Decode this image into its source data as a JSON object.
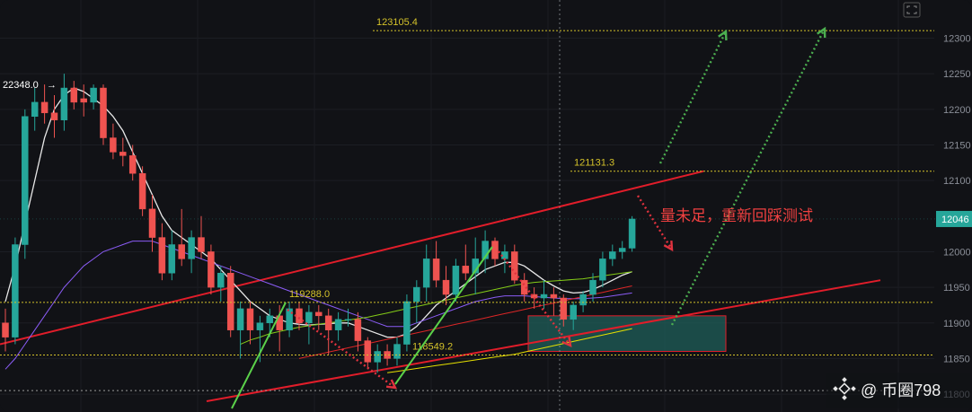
{
  "chart_data": {
    "type": "candlestick",
    "price_range": [
      117900,
      123120
    ],
    "y_ticks": [
      {
        "value": 123000,
        "label": "12300"
      },
      {
        "value": 122500,
        "label": "12250"
      },
      {
        "value": 122000,
        "label": "12200"
      },
      {
        "value": 121500,
        "label": "12150"
      },
      {
        "value": 121000,
        "label": "12100"
      },
      {
        "value": 120000,
        "label": "12000"
      },
      {
        "value": 119500,
        "label": "11950"
      },
      {
        "value": 119000,
        "label": "11900"
      },
      {
        "value": 118500,
        "label": "11850"
      },
      {
        "value": 118000,
        "label": "11800"
      }
    ],
    "current_price": {
      "value": 120460,
      "label": "12046"
    },
    "candles": [
      [
        119000,
        119200,
        118600,
        118800
      ],
      [
        118800,
        120200,
        118700,
        120100
      ],
      [
        120100,
        122000,
        119900,
        121900
      ],
      [
        121900,
        122300,
        121700,
        122100
      ],
      [
        122100,
        122350,
        121800,
        121950
      ],
      [
        121950,
        122200,
        121600,
        121850
      ],
      [
        121850,
        122500,
        121700,
        122300
      ],
      [
        122300,
        122400,
        122000,
        122100
      ],
      [
        122150,
        122350,
        121900,
        122100
      ],
      [
        122100,
        122350,
        122000,
        122300
      ],
      [
        122300,
        122350,
        121500,
        121600
      ],
      [
        121600,
        121800,
        121300,
        121400
      ],
      [
        121400,
        121600,
        121200,
        121350
      ],
      [
        121350,
        121500,
        121000,
        121100
      ],
      [
        121100,
        121200,
        120500,
        120600
      ],
      [
        120600,
        120800,
        120000,
        120200
      ],
      [
        120200,
        120400,
        119600,
        119700
      ],
      [
        119700,
        120300,
        119600,
        120100
      ],
      [
        120100,
        120600,
        119800,
        119900
      ],
      [
        119900,
        120300,
        119700,
        120200
      ],
      [
        120200,
        120500,
        119900,
        120000
      ],
      [
        120000,
        120100,
        119400,
        119500
      ],
      [
        119500,
        119800,
        119300,
        119700
      ],
      [
        119700,
        119800,
        118800,
        118900
      ],
      [
        118900,
        119300,
        118500,
        119200
      ],
      [
        119200,
        119300,
        118700,
        118900
      ],
      [
        118900,
        119100,
        118450,
        119000
      ],
      [
        119000,
        119200,
        118800,
        119100
      ],
      [
        119100,
        119250,
        118600,
        118900
      ],
      [
        118900,
        119300,
        118800,
        119200
      ],
      [
        119200,
        119300,
        118900,
        119000
      ],
      [
        119000,
        119250,
        118700,
        119150
      ],
      [
        119150,
        119250,
        118900,
        119100
      ],
      [
        119100,
        119200,
        118550,
        118900
      ],
      [
        118900,
        119150,
        118750,
        119050
      ],
      [
        119050,
        119200,
        118950,
        119050
      ],
      [
        119050,
        119150,
        118600,
        118750
      ],
      [
        118750,
        118800,
        118350,
        118450
      ],
      [
        118450,
        118700,
        118300,
        118600
      ],
      [
        118600,
        118700,
        118400,
        118500
      ],
      [
        118500,
        118800,
        118400,
        118700
      ],
      [
        118700,
        119400,
        118600,
        119300
      ],
      [
        119300,
        119600,
        119000,
        119500
      ],
      [
        119500,
        120100,
        119300,
        119900
      ],
      [
        119900,
        120150,
        119500,
        119600
      ],
      [
        119600,
        119800,
        119250,
        119400
      ],
      [
        119400,
        119900,
        119300,
        119800
      ],
      [
        119800,
        120100,
        119600,
        119700
      ],
      [
        119700,
        120200,
        119400,
        119900
      ],
      [
        119900,
        120300,
        119700,
        120150
      ],
      [
        120150,
        120200,
        119800,
        119900
      ],
      [
        119900,
        120100,
        119700,
        120000
      ],
      [
        120000,
        120100,
        119550,
        119600
      ],
      [
        119600,
        119700,
        119300,
        119400
      ],
      [
        119400,
        119500,
        119200,
        119350
      ],
      [
        119350,
        119600,
        119200,
        119400
      ],
      [
        119400,
        119500,
        119100,
        119350
      ],
      [
        119350,
        119400,
        118950,
        119050
      ],
      [
        119050,
        119300,
        118900,
        119250
      ],
      [
        119250,
        119450,
        119150,
        119400
      ],
      [
        119400,
        119700,
        119300,
        119600
      ],
      [
        119600,
        120000,
        119500,
        119900
      ],
      [
        119900,
        120100,
        119800,
        120000
      ],
      [
        120000,
        120150,
        119900,
        120050
      ],
      [
        120050,
        120500,
        120000,
        120460
      ]
    ],
    "moving_averages": [
      {
        "color": "#e8e8e8",
        "values": [
          119300,
          119800,
          120400,
          121000,
          121600,
          122000,
          122200,
          122300,
          122250,
          122150,
          122050,
          121900,
          121700,
          121400,
          121100,
          120800,
          120500,
          120300,
          120200,
          120100,
          120000,
          119900,
          119750,
          119600,
          119450,
          119300,
          119200,
          119100,
          119050,
          119000,
          118980,
          118970,
          118980,
          118990,
          119000,
          119000,
          118950,
          118900,
          118850,
          118800,
          118800,
          118850,
          118950,
          119100,
          119250,
          119350,
          119450,
          119550,
          119650,
          119750,
          119800,
          119850,
          119850,
          119800,
          119700,
          119600,
          119520,
          119450,
          119420,
          119430,
          119470,
          119530,
          119600,
          119670,
          119720
        ]
      },
      {
        "color": "#8b5cf6",
        "values": [
          118350,
          118500,
          118700,
          118900,
          119100,
          119300,
          119500,
          119650,
          119800,
          119900,
          120000,
          120050,
          120100,
          120150,
          120150,
          120150,
          120100,
          120050,
          120000,
          119950,
          119900,
          119850,
          119800,
          119750,
          119700,
          119650,
          119600,
          119550,
          119500,
          119450,
          119400,
          119350,
          119300,
          119250,
          119200,
          119150,
          119100,
          119050,
          119000,
          118950,
          118950,
          118950,
          119000,
          119050,
          119100,
          119150,
          119200,
          119250,
          119300,
          119330,
          119360,
          119380,
          119380,
          119380,
          119370,
          119360,
          119350,
          119340,
          119340,
          119340,
          119350,
          119360,
          119380,
          119400,
          119420
        ]
      },
      {
        "color": "#84cc16",
        "values": [
          null,
          null,
          null,
          null,
          null,
          null,
          null,
          null,
          null,
          null,
          null,
          null,
          null,
          null,
          null,
          null,
          null,
          null,
          null,
          null,
          null,
          null,
          null,
          null,
          118700,
          118760,
          118800,
          118850,
          118880,
          118910,
          118940,
          118960,
          118980,
          119000,
          119020,
          119040,
          119060,
          119080,
          119110,
          119140,
          119170,
          119200,
          119230,
          119260,
          119290,
          119320,
          119350,
          119380,
          119410,
          119440,
          119470,
          119500,
          119530,
          119550,
          119570,
          119580,
          119590,
          119600,
          119610,
          119620,
          119640,
          119660,
          119680,
          119700,
          119720
        ]
      },
      {
        "color": "#dc2626",
        "values": [
          null,
          null,
          null,
          null,
          null,
          null,
          null,
          null,
          null,
          null,
          null,
          null,
          null,
          null,
          null,
          null,
          null,
          null,
          null,
          null,
          null,
          null,
          null,
          null,
          null,
          null,
          null,
          null,
          null,
          null,
          118500,
          118530,
          118560,
          118590,
          118620,
          118650,
          118680,
          118710,
          118740,
          118770,
          118800,
          118830,
          118860,
          118890,
          118920,
          118950,
          118980,
          119010,
          119040,
          119070,
          119100,
          119130,
          119160,
          119190,
          119220,
          119250,
          119280,
          119310,
          119340,
          119370,
          119400,
          119430,
          119460,
          119490,
          119520
        ]
      },
      {
        "color": "#e5e000",
        "values": [
          null,
          null,
          null,
          null,
          null,
          null,
          null,
          null,
          null,
          null,
          null,
          null,
          null,
          null,
          null,
          null,
          null,
          null,
          null,
          null,
          null,
          null,
          null,
          null,
          null,
          null,
          null,
          null,
          null,
          null,
          null,
          null,
          null,
          null,
          null,
          null,
          null,
          null,
          null,
          118300,
          118320,
          118340,
          118360,
          118380,
          118400,
          118420,
          118440,
          118460,
          118480,
          118500,
          118520,
          118540,
          118560,
          118590,
          118620,
          118650,
          118680,
          118710,
          118740,
          118770,
          118800,
          118830,
          118860,
          118890,
          118920
        ]
      }
    ],
    "levels": [
      {
        "value": 123105.4,
        "label": "123105.4"
      },
      {
        "value": 121131.3,
        "label": "121131.3"
      },
      {
        "value": 119288.0,
        "label": "119288.0"
      },
      {
        "value": 118549.2,
        "label": "118549.2"
      }
    ],
    "annotations": {
      "high_label": "22348.0",
      "comment": "量未足，重新回踩测试"
    },
    "colors": {
      "up": "#26a69a",
      "down": "#ef5350",
      "background": "#111216",
      "channel": "#e11d2a",
      "arrow_up": "#4caf50",
      "arrow_down": "#e0323e",
      "level": "#d4c22a",
      "zone": "#1f5f5a"
    }
  },
  "watermark": {
    "text": "@ 币圈798"
  }
}
